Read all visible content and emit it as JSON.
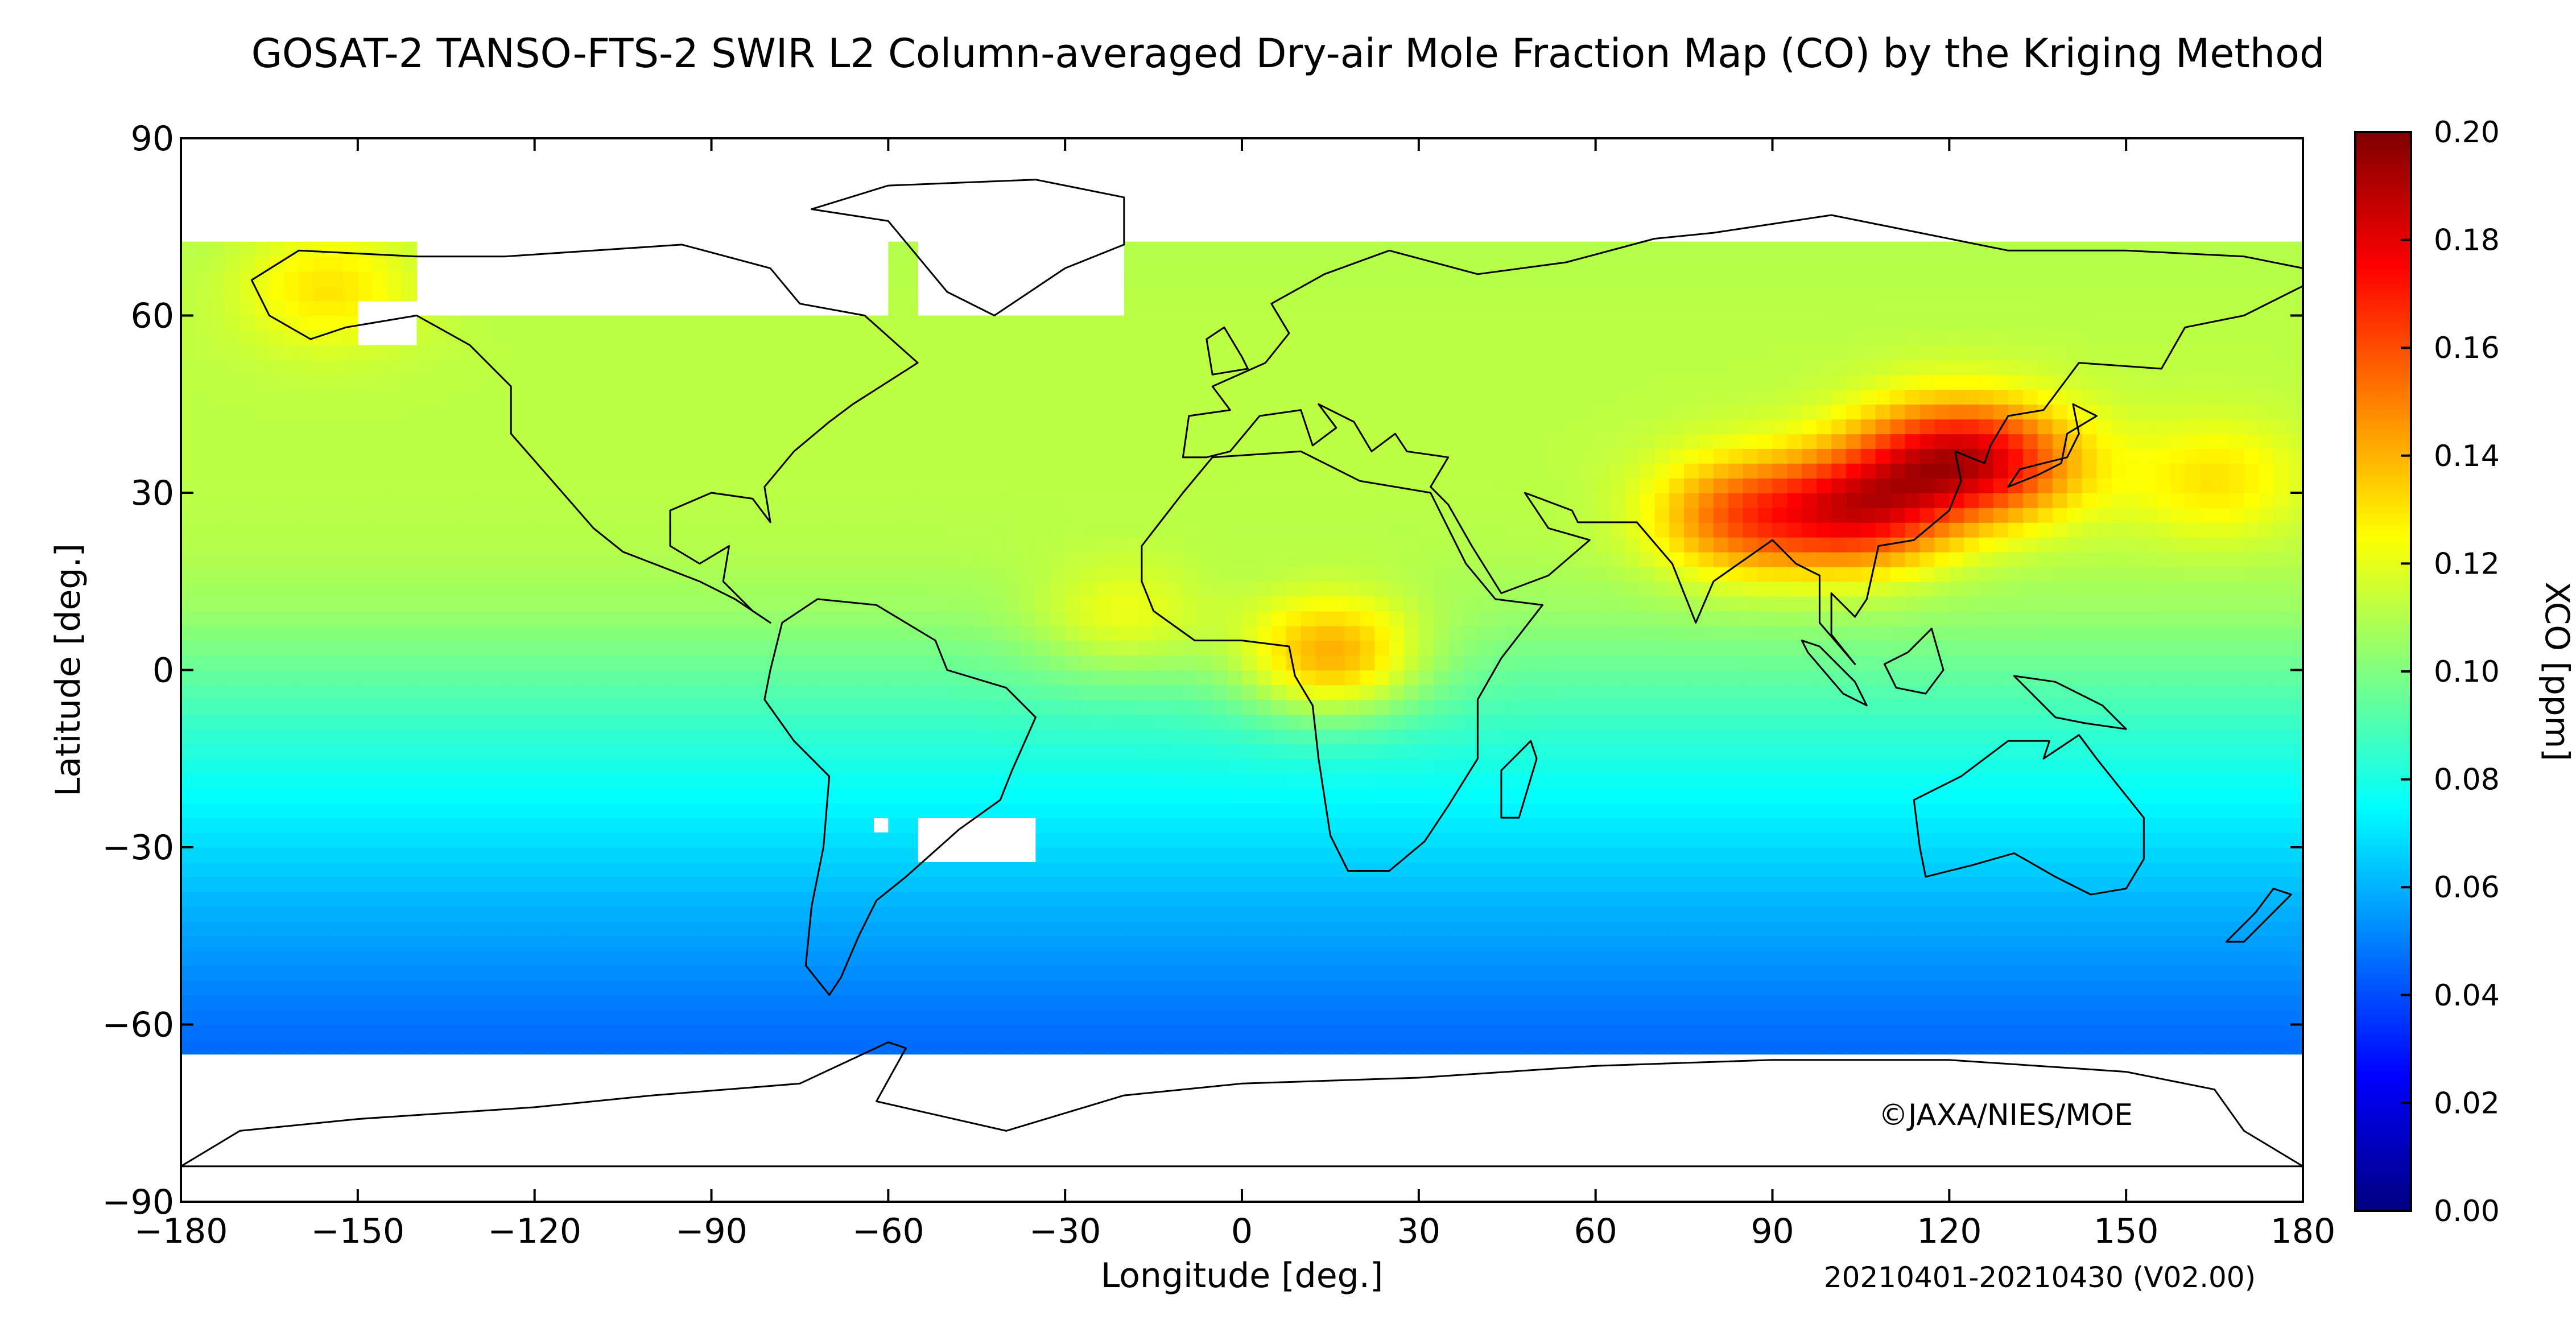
{
  "title": "GOSAT-2 TANSO-FTS-2 SWIR L2 Column-averaged Dry-air Mole Fraction Map (CO) by the Kriging Method",
  "copyright": "©JAXA/NIES/MOE",
  "period_label": "20210401-20210430 (V02.00)",
  "colors": {
    "land_outline": "#000000",
    "no_data": "#ffffff",
    "colormap": [
      "#000080",
      "#0000ff",
      "#0080ff",
      "#00ffff",
      "#80ff80",
      "#ffff00",
      "#ff8000",
      "#ff0000",
      "#800000"
    ]
  },
  "chart_data": {
    "type": "heatmap",
    "xlabel": "Longitude [deg.]",
    "ylabel": "Latitude [deg.]",
    "xlim": [
      -180,
      180
    ],
    "ylim": [
      -90,
      90
    ],
    "xticks": [
      -180,
      -150,
      -120,
      -90,
      -60,
      -30,
      0,
      30,
      60,
      90,
      120,
      150,
      180
    ],
    "yticks": [
      -90,
      -60,
      -30,
      0,
      30,
      60,
      90
    ],
    "xtick_labels": [
      "−180",
      "−150",
      "−120",
      "−90",
      "−60",
      "−30",
      "0",
      "30",
      "60",
      "90",
      "120",
      "150",
      "180"
    ],
    "ytick_labels": [
      "−90",
      "−60",
      "−30",
      "0",
      "30",
      "60",
      "90"
    ],
    "colorbar": {
      "label": "XCO [ppm]",
      "range": [
        0.0,
        0.2
      ],
      "ticks": [
        0.0,
        0.02,
        0.04,
        0.06,
        0.08,
        0.1,
        0.12,
        0.14,
        0.16,
        0.18,
        0.2
      ],
      "tick_labels": [
        "0.00",
        "0.02",
        "0.04",
        "0.06",
        "0.08",
        "0.10",
        "0.12",
        "0.14",
        "0.16",
        "0.18",
        "0.20"
      ]
    },
    "grid_resolution_deg": 2.5,
    "latitudinal_background": [
      {
        "lat": -66,
        "value": 0.045
      },
      {
        "lat": -55,
        "value": 0.05
      },
      {
        "lat": -40,
        "value": 0.06
      },
      {
        "lat": -25,
        "value": 0.072
      },
      {
        "lat": -10,
        "value": 0.085
      },
      {
        "lat": 0,
        "value": 0.095
      },
      {
        "lat": 10,
        "value": 0.105
      },
      {
        "lat": 20,
        "value": 0.11
      },
      {
        "lat": 35,
        "value": 0.112
      },
      {
        "lat": 55,
        "value": 0.112
      },
      {
        "lat": 72,
        "value": 0.11
      }
    ],
    "hotspots": [
      {
        "lon": 105,
        "lat": 27,
        "value": 0.17
      },
      {
        "lon": 118,
        "lat": 36,
        "value": 0.16
      },
      {
        "lon": 85,
        "lat": 26,
        "value": 0.155
      },
      {
        "lon": 130,
        "lat": 35,
        "value": 0.15
      },
      {
        "lon": 15,
        "lat": 2,
        "value": 0.14
      },
      {
        "lon": -155,
        "lat": 65,
        "value": 0.13
      },
      {
        "lon": 165,
        "lat": 32,
        "value": 0.13
      },
      {
        "lon": -20,
        "lat": 8,
        "value": 0.12
      }
    ],
    "no_data_regions": [
      {
        "lon": [
          -180,
          180
        ],
        "lat": [
          72,
          90
        ]
      },
      {
        "lon": [
          -180,
          180
        ],
        "lat": [
          -90,
          -66
        ]
      },
      {
        "lon": [
          -140,
          -60
        ],
        "lat": [
          60,
          90
        ]
      },
      {
        "lon": [
          -55,
          -20
        ],
        "lat": [
          60,
          90
        ]
      },
      {
        "lon": [
          -55,
          -35
        ],
        "lat": [
          -32,
          -25
        ]
      },
      {
        "lon": [
          -62,
          -60
        ],
        "lat": [
          -28,
          -24
        ]
      },
      {
        "lon": [
          -150,
          -140
        ],
        "lat": [
          55,
          62
        ]
      }
    ]
  }
}
